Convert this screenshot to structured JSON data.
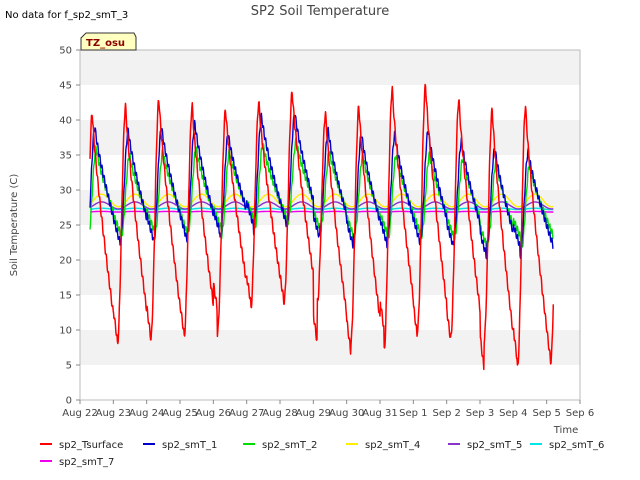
{
  "chart_data": {
    "type": "line",
    "title": "SP2 Soil Temperature",
    "note": "No data for f_sp2_smT_3",
    "timezone_label": "TZ_osu",
    "xlabel": "Time",
    "ylabel": "Soil Temperature (C)",
    "ylim": [
      0,
      50
    ],
    "yticks": [
      0,
      5,
      10,
      15,
      20,
      25,
      30,
      35,
      40,
      45,
      50
    ],
    "xlim": [
      0,
      15
    ],
    "xticks": [
      "Aug 22",
      "Aug 23",
      "Aug 24",
      "Aug 25",
      "Aug 26",
      "Aug 27",
      "Aug 28",
      "Aug 29",
      "Aug 30",
      "Aug 31",
      "Sep 1",
      "Sep 2",
      "Sep 3",
      "Sep 4",
      "Sep 5",
      "Sep 6"
    ],
    "grid": "horizontal bands",
    "legend_position": "bottom",
    "series": [
      {
        "name": "sp2_Tsurface",
        "color": "#ff0000",
        "mean": 25,
        "max": [
          41,
          42,
          43,
          42,
          41.5,
          42.5,
          44,
          41,
          42,
          44.5,
          45,
          43,
          41.5,
          42
        ],
        "min": [
          7,
          8,
          8.5,
          9,
          9.5,
          13,
          14,
          14,
          8,
          7,
          10,
          9,
          8.5,
          4.5,
          5.5
        ]
      },
      {
        "name": "sp2_smT_1",
        "color": "#0000cc",
        "mean": 29,
        "max": [
          39,
          38.5,
          39,
          39.5,
          38,
          40.5,
          41,
          38.5,
          38,
          38,
          38.5,
          37,
          36,
          35.5
        ],
        "min": [
          22,
          22.5,
          22.5,
          23,
          23,
          24,
          25,
          25,
          23,
          22,
          22.5,
          22.5,
          22,
          20.5,
          22
        ]
      },
      {
        "name": "sp2_smT_2",
        "color": "#00dd00",
        "mean": 29,
        "max": [
          36,
          35,
          35.5,
          36,
          35.5,
          36.5,
          37,
          35.5,
          35,
          35,
          35,
          34.5,
          34,
          33.5
        ],
        "min": [
          23,
          23.5,
          23.5,
          24,
          23.5,
          24.5,
          25.5,
          25.5,
          24,
          23,
          23.5,
          23.5,
          23,
          21.5,
          23
        ]
      },
      {
        "name": "sp2_smT_4",
        "color": "#ffee00",
        "mean": 28.5,
        "amp": 0.9
      },
      {
        "name": "sp2_smT_5",
        "color": "#8833cc",
        "mean": 27.8,
        "amp": 0.5
      },
      {
        "name": "sp2_smT_6",
        "color": "#00e5e5",
        "mean": 27.3,
        "amp": 0.1
      },
      {
        "name": "sp2_smT_7",
        "color": "#ee00ee",
        "mean": 26.9,
        "amp": 0.05
      }
    ]
  }
}
